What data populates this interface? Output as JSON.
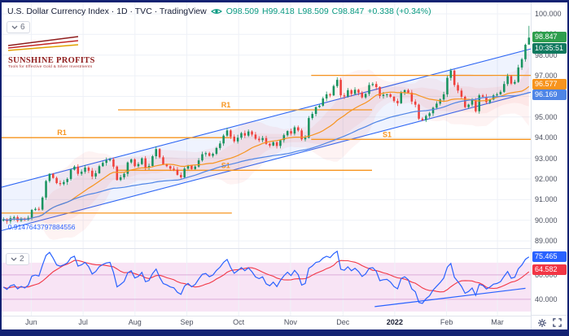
{
  "legend": {
    "title": "U.S. Dollar Currency Index · 1D · TVC · TradingView",
    "values": [
      "O98.509",
      "H99.418",
      "L98.509",
      "C98.847",
      "+0.338 (+0.34%)"
    ]
  },
  "toolbar": {
    "main_count": "6",
    "rsi_count": "2"
  },
  "logo": {
    "name": "SUNSHINE PROFITS",
    "tagline": "Tools for Effective Gold & Silver Investments"
  },
  "price_scale": {
    "last": "98.847",
    "countdown": "10:35:51",
    "sma20": "96.577",
    "sma50": "96.169",
    "rsi": "75.465",
    "rsi_ma": "64.582"
  },
  "colors": {
    "frame": "#132272",
    "grid": "#eef1f7",
    "up": "#18935f",
    "down": "#ef403c",
    "sma20": "#f7941e",
    "sma50": "#4f85e6",
    "bb_fill": "rgba(242,84,84,0.07)",
    "channel": "#2d66f4",
    "channel_fill": "rgba(45,102,244,0.08)",
    "pivot": "#f7941e",
    "ohlc": "#089981",
    "badge_last": "#2f9e4e",
    "badge_countdown": "#11795f",
    "badge_rsi": "#2962ff",
    "badge_rsima": "#f23645",
    "rsi_line": "#2962ff",
    "rsi_ma": "#f23645",
    "rsi_fill": "rgba(226,149,214,0.25)",
    "rsi_level": "rgba(196,128,196,0.55)",
    "logo_lines": [
      "#8f1d1d",
      "#c22727",
      "#e0a100"
    ],
    "icon": "#323d66"
  },
  "chart_data": [
    {
      "type": "candlestick",
      "symbol": "U.S. Dollar Currency Index",
      "exchange": "TVC",
      "interval": "1D",
      "last": {
        "o": 98.509,
        "h": 99.418,
        "l": 98.509,
        "c": 98.847,
        "change": "+0.338",
        "change_pct": "+0.34%"
      },
      "ylim": [
        88.65,
        100.55
      ],
      "y_ticks": [
        {
          "label": "100.000",
          "v": 100
        },
        {
          "label": "99.000",
          "v": 99
        },
        {
          "label": "98.000",
          "v": 98
        },
        {
          "label": "97.000",
          "v": 97
        },
        {
          "label": "96.000",
          "v": 96
        },
        {
          "label": "95.000",
          "v": 95
        },
        {
          "label": "94.000",
          "v": 94
        },
        {
          "label": "93.000",
          "v": 93
        },
        {
          "label": "92.000",
          "v": 92
        },
        {
          "label": "91.000",
          "v": 91
        },
        {
          "label": "90.000",
          "v": 90
        },
        {
          "label": "89.000",
          "v": 89
        }
      ],
      "x_labels": [
        {
          "label": "Jun",
          "f": 0.056
        },
        {
          "label": "Jul",
          "f": 0.154
        },
        {
          "label": "Aug",
          "f": 0.252
        },
        {
          "label": "Sep",
          "f": 0.35
        },
        {
          "label": "Oct",
          "f": 0.448
        },
        {
          "label": "Nov",
          "f": 0.546
        },
        {
          "label": "Dec",
          "f": 0.645
        },
        {
          "label": "2022",
          "f": 0.743,
          "year": true
        },
        {
          "label": "Feb",
          "f": 0.841
        },
        {
          "label": "Mar",
          "f": 0.937
        }
      ],
      "first_open": 89.98,
      "closes": [
        90.05,
        89.95,
        90.1,
        90.15,
        89.98,
        90.08,
        90.02,
        90.12,
        90.5,
        90.55,
        90.52,
        91.1,
        91.9,
        92.25,
        92.05,
        91.8,
        91.75,
        91.85,
        92.0,
        92.45,
        92.6,
        92.25,
        92.35,
        92.55,
        92.4,
        92.12,
        92.28,
        92.62,
        92.78,
        92.9,
        92.95,
        92.6,
        91.95,
        92.08,
        92.25,
        92.8,
        92.95,
        92.62,
        92.72,
        93.0,
        92.55,
        92.63,
        93.1,
        93.45,
        93.05,
        92.7,
        92.62,
        92.5,
        92.45,
        92.2,
        92.08,
        92.5,
        92.65,
        92.48,
        92.6,
        92.9,
        93.2,
        93.25,
        93.12,
        93.22,
        93.5,
        93.72,
        94.1,
        94.35,
        94.05,
        93.82,
        94.0,
        94.22,
        94.1,
        94.3,
        94.15,
        93.95,
        93.88,
        93.98,
        93.7,
        93.62,
        93.78,
        93.6,
        93.88,
        94.12,
        94.32,
        94.2,
        94.5,
        94.35,
        93.92,
        94.0,
        94.95,
        95.15,
        95.48,
        95.55,
        95.9,
        96.1,
        96.05,
        96.5,
        96.8,
        96.05,
        96.0,
        96.3,
        96.12,
        96.32,
        96.18,
        95.95,
        96.12,
        96.55,
        96.6,
        96.45,
        96.02,
        96.08,
        96.1,
        95.98,
        95.78,
        95.67,
        96.2,
        96.3,
        96.18,
        95.75,
        95.6,
        94.92,
        94.85,
        95.05,
        95.18,
        95.45,
        95.65,
        95.85,
        96.1,
        96.9,
        97.25,
        96.55,
        96.28,
        95.98,
        95.48,
        95.6,
        95.82,
        95.28,
        96.05,
        95.98,
        95.72,
        95.85,
        96.05,
        96.1,
        96.22,
        96.6,
        96.98,
        96.62,
        96.7,
        97.4,
        97.8,
        98.5,
        98.847
      ],
      "indicators": [
        {
          "name": "SMA",
          "period": 20,
          "color": "#f7941e",
          "last": 96.577
        },
        {
          "name": "SMA",
          "period": 50,
          "color": "#4f85e6",
          "last": 96.169
        },
        {
          "name": "BB",
          "period": 20,
          "stdev": 2
        }
      ],
      "channel": {
        "upper": [
          91.6,
          98.3
        ],
        "lower": [
          89.5,
          96.2
        ]
      },
      "pivots": [
        {
          "label": "R1",
          "price": 94.0,
          "from": 0.0,
          "to": 0.435,
          "label_f": 0.105
        },
        {
          "label": "S1",
          "price": 90.35,
          "from": 0.0,
          "to": 0.435,
          "label_f": null
        },
        {
          "label": "R1",
          "price": 95.35,
          "from": 0.22,
          "to": 0.7,
          "label_f": 0.415
        },
        {
          "label": "S1",
          "price": 92.42,
          "from": 0.22,
          "to": 0.7,
          "label_f": 0.415
        },
        {
          "label": "R1",
          "price": 97.02,
          "from": 0.585,
          "to": 1.0,
          "label_f": null
        },
        {
          "label": "S1",
          "price": 93.92,
          "from": 0.585,
          "to": 1.0,
          "label_f": 0.72
        }
      ],
      "annotation": {
        "text": "0.9147643797884556",
        "price": 89.55,
        "f": 0.012,
        "color": "#2962ff"
      }
    },
    {
      "type": "line",
      "name": "RSI",
      "period": 14,
      "ylim": [
        26.6,
        81.3
      ],
      "y_ticks": [
        {
          "label": "60.000",
          "value": 60
        },
        {
          "label": "40.000",
          "value": 40
        }
      ],
      "band": [
        30,
        70
      ],
      "last": 75.465,
      "ma_period": 10,
      "ma_last": 64.582,
      "trendline": {
        "x1": 0.705,
        "v1": 34,
        "x2": 0.99,
        "v2": 49
      }
    }
  ]
}
